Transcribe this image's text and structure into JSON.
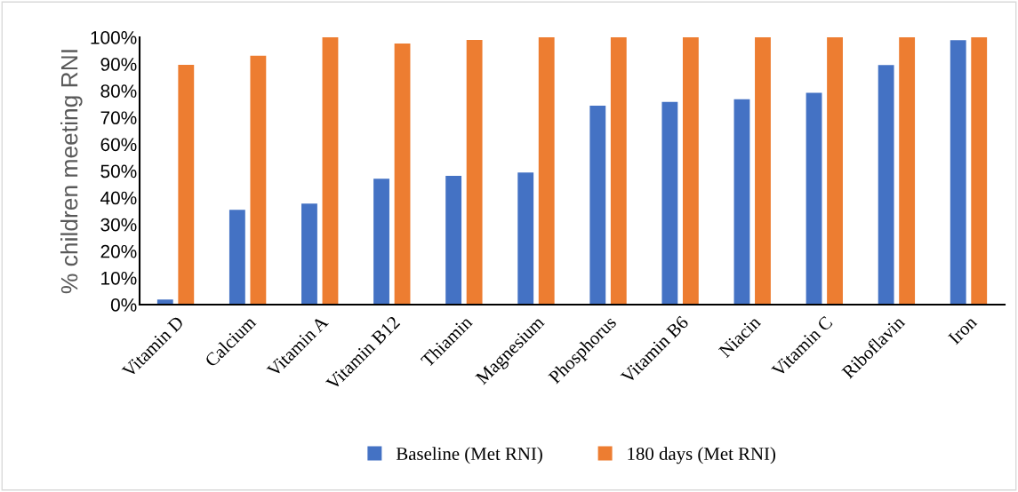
{
  "chart_data": {
    "type": "bar",
    "ylabel": "% children meeting RNI",
    "categories": [
      "Vitamin D",
      "Calcium",
      "Vitamin A",
      "Vitamin B12",
      "Thiamin",
      "Magnesium",
      "Phosphorus",
      "Vitamin B6",
      "Niacin",
      "Vitamin C",
      "Riboflavin",
      "Iron"
    ],
    "series": [
      {
        "name": "Baseline (Met RNI)",
        "color": "#4472c4",
        "values": [
          1.9,
          35.5,
          37.8,
          47.1,
          48.2,
          49.4,
          74.4,
          75.8,
          76.8,
          79.2,
          89.6,
          98.9
        ]
      },
      {
        "name": "180 days (Met RNI)",
        "color": "#ed7d31",
        "values": [
          89.7,
          93.1,
          100,
          97.7,
          99,
          100,
          100,
          100,
          100,
          100,
          100,
          100
        ]
      }
    ],
    "ylim": [
      0,
      100
    ],
    "yticks": [
      {
        "value": 0,
        "label": "0%"
      },
      {
        "value": 10,
        "label": "10%"
      },
      {
        "value": 20,
        "label": "20%"
      },
      {
        "value": 30,
        "label": "30%"
      },
      {
        "value": 40,
        "label": "40%"
      },
      {
        "value": 50,
        "label": "50%"
      },
      {
        "value": 60,
        "label": "60%"
      },
      {
        "value": 70,
        "label": "70%"
      },
      {
        "value": 80,
        "label": "80%"
      },
      {
        "value": 90,
        "label": "90%"
      },
      {
        "value": 100,
        "label": "100%"
      }
    ],
    "grid": false,
    "legend": "bottom"
  }
}
